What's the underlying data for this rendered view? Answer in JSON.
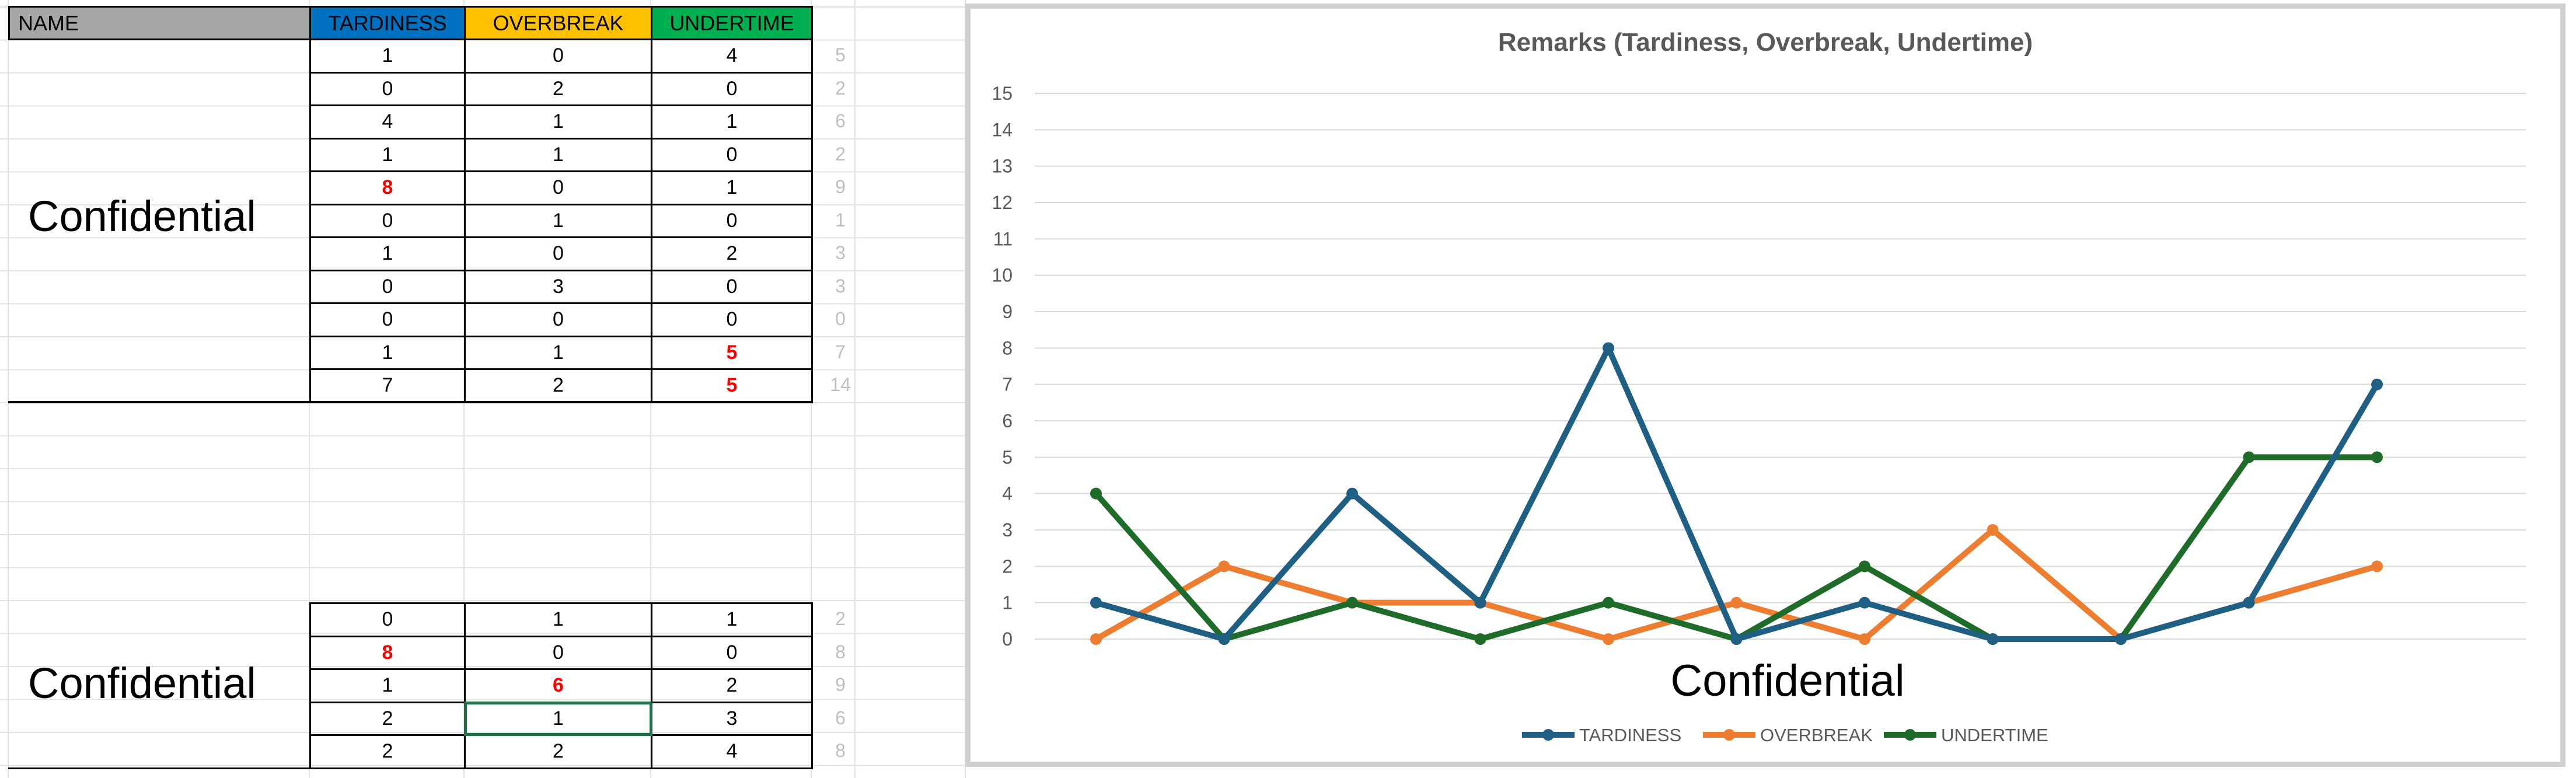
{
  "table": {
    "headers": {
      "name": "NAME",
      "tardiness": "TARDINESS",
      "overbreak": "OVERBREAK",
      "undertime": "UNDERTIME"
    },
    "group1": [
      {
        "t": "1",
        "o": "0",
        "u": "4",
        "total": "5"
      },
      {
        "t": "0",
        "o": "2",
        "u": "0",
        "total": "2"
      },
      {
        "t": "4",
        "o": "1",
        "u": "1",
        "total": "6"
      },
      {
        "t": "1",
        "o": "1",
        "u": "0",
        "total": "2"
      },
      {
        "t": "8",
        "o": "0",
        "u": "1",
        "total": "9"
      },
      {
        "t": "0",
        "o": "1",
        "u": "0",
        "total": "1"
      },
      {
        "t": "1",
        "o": "0",
        "u": "2",
        "total": "3"
      },
      {
        "t": "0",
        "o": "3",
        "u": "0",
        "total": "3"
      },
      {
        "t": "0",
        "o": "0",
        "u": "0",
        "total": "0"
      },
      {
        "t": "1",
        "o": "1",
        "u": "5",
        "total": "7"
      },
      {
        "t": "7",
        "o": "2",
        "u": "5",
        "total": "14"
      }
    ],
    "group2": [
      {
        "t": "0",
        "o": "1",
        "u": "1",
        "total": "2"
      },
      {
        "t": "8",
        "o": "0",
        "u": "0",
        "total": "8"
      },
      {
        "t": "1",
        "o": "6",
        "u": "2",
        "total": "9"
      },
      {
        "t": "2",
        "o": "1",
        "u": "3",
        "total": "6"
      },
      {
        "t": "2",
        "o": "2",
        "u": "4",
        "total": "8"
      }
    ],
    "confidential_label_1": "Confidential",
    "confidential_label_2": "Confidential"
  },
  "colors": {
    "tardiness": "#1f5f84",
    "overbreak": "#ed7d31",
    "undertime": "#1e6b2a",
    "highlight": "#ff0000"
  },
  "chart_data": {
    "type": "line",
    "title": "Remarks (Tardiness, Overbreak, Undertime)",
    "watermark": "Confidential",
    "ylim": [
      0,
      15
    ],
    "yticks": [
      "0",
      "1",
      "2",
      "3",
      "4",
      "5",
      "6",
      "7",
      "8",
      "9",
      "10",
      "11",
      "12",
      "13",
      "14",
      "15"
    ],
    "grid": true,
    "legend_position": "bottom",
    "series": [
      {
        "name": "TARDINESS",
        "values": [
          1,
          0,
          4,
          1,
          8,
          0,
          1,
          0,
          0,
          1,
          7
        ]
      },
      {
        "name": "OVERBREAK",
        "values": [
          0,
          2,
          1,
          1,
          0,
          1,
          0,
          3,
          0,
          1,
          2
        ]
      },
      {
        "name": "UNDERTIME",
        "values": [
          4,
          0,
          1,
          0,
          1,
          0,
          2,
          0,
          0,
          5,
          5
        ]
      }
    ]
  }
}
